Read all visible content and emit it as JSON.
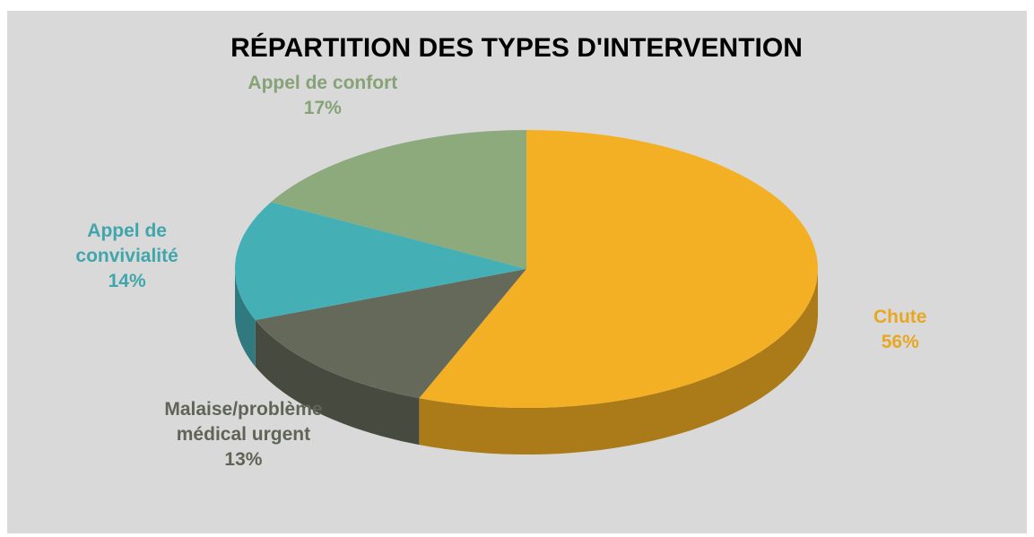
{
  "chart_data": {
    "type": "pie",
    "title": "RÉPARTITION DES TYPES D'INTERVENTION",
    "categories": [
      "Chute",
      "Malaise/problème médical urgent",
      "Appel de convivialité",
      "Appel de confort"
    ],
    "values": [
      56,
      13,
      14,
      17
    ],
    "value_labels": [
      "56%",
      "13%",
      "14%",
      "17%"
    ],
    "colors": [
      "#F4B024",
      "#65695A",
      "#44AFB5",
      "#8DAA7D"
    ]
  }
}
